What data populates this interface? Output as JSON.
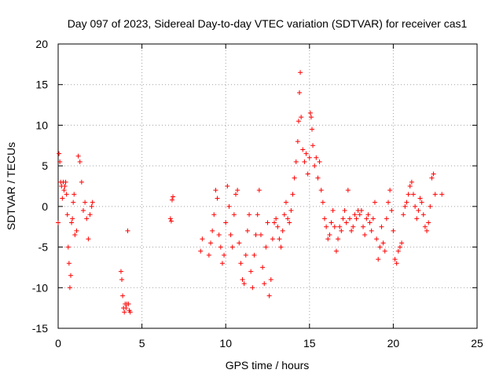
{
  "chart_data": {
    "type": "scatter",
    "title": "Day 097 of 2023, Sidereal Day-to-day VTEC variation (SDTVAR) for receiver cas1",
    "xlabel": "GPS time / hours",
    "ylabel": "SDTVAR / TECUs",
    "xlim": [
      0,
      25
    ],
    "ylim": [
      -15,
      20
    ],
    "xticks": [
      0,
      5,
      10,
      15,
      20,
      25
    ],
    "yticks": [
      -15,
      -10,
      -5,
      0,
      5,
      10,
      15,
      20
    ],
    "xtick_labels": [
      "0",
      "5",
      "10",
      "15",
      "20",
      "25"
    ],
    "ytick_labels": [
      "-15",
      "-10",
      "-5",
      "0",
      "5",
      "10",
      "15",
      "20"
    ],
    "grid": true,
    "marker": "+",
    "color": "#ff0000",
    "series": [
      {
        "name": "SDTVAR",
        "x": [
          0.0,
          0.05,
          0.1,
          0.15,
          0.2,
          0.25,
          0.3,
          0.35,
          0.4,
          0.45,
          0.5,
          0.55,
          0.6,
          0.65,
          0.7,
          0.75,
          0.8,
          0.85,
          0.9,
          0.95,
          1.0,
          1.1,
          1.2,
          1.3,
          1.4,
          1.5,
          1.6,
          1.7,
          1.8,
          1.9,
          2.0,
          2.05,
          3.75,
          3.8,
          3.85,
          3.9,
          3.95,
          4.0,
          4.05,
          4.1,
          4.15,
          4.2,
          4.25,
          4.3,
          6.7,
          6.75,
          6.8,
          6.85,
          8.5,
          8.6,
          9.0,
          9.1,
          9.2,
          9.3,
          9.4,
          9.5,
          9.6,
          9.7,
          9.8,
          9.9,
          10.0,
          10.1,
          10.2,
          10.3,
          10.4,
          10.5,
          10.6,
          10.7,
          10.8,
          10.9,
          11.0,
          11.1,
          11.2,
          11.3,
          11.4,
          11.5,
          11.6,
          11.7,
          11.8,
          11.9,
          12.0,
          12.1,
          12.2,
          12.3,
          12.4,
          12.5,
          12.6,
          12.7,
          12.8,
          12.9,
          13.0,
          13.1,
          13.2,
          13.3,
          13.4,
          13.5,
          13.6,
          13.7,
          13.8,
          13.9,
          14.0,
          14.1,
          14.2,
          14.3,
          14.35,
          14.4,
          14.45,
          14.5,
          14.6,
          14.7,
          14.8,
          14.9,
          15.0,
          15.05,
          15.1,
          15.15,
          15.2,
          15.3,
          15.4,
          15.5,
          15.6,
          15.7,
          15.8,
          15.9,
          16.0,
          16.1,
          16.2,
          16.3,
          16.4,
          16.5,
          16.6,
          16.7,
          16.8,
          16.9,
          17.0,
          17.1,
          17.2,
          17.3,
          17.4,
          17.5,
          17.6,
          17.7,
          17.8,
          17.9,
          18.0,
          18.1,
          18.2,
          18.3,
          18.4,
          18.5,
          18.6,
          18.7,
          18.8,
          18.9,
          19.0,
          19.1,
          19.2,
          19.3,
          19.4,
          19.5,
          19.6,
          19.7,
          19.8,
          19.9,
          20.0,
          20.1,
          20.2,
          20.3,
          20.4,
          20.5,
          20.6,
          20.7,
          20.8,
          20.9,
          21.0,
          21.1,
          21.2,
          21.3,
          21.4,
          21.5,
          21.6,
          21.7,
          21.8,
          21.9,
          22.0,
          22.1,
          22.2,
          22.3,
          22.4,
          22.5,
          22.9
        ],
        "y": [
          -2.0,
          6.5,
          5.5,
          3.0,
          2.5,
          1.0,
          3.0,
          2.0,
          2.5,
          3.0,
          1.5,
          -1.0,
          -5.0,
          -7.0,
          -10.0,
          -8.5,
          -2.0,
          -1.5,
          0.5,
          1.5,
          -3.5,
          -3.0,
          6.2,
          5.5,
          3.0,
          -0.5,
          0.5,
          -1.5,
          -4.0,
          -1.0,
          0.0,
          0.5,
          -8.0,
          -9.0,
          -11.0,
          -12.5,
          -13.0,
          -12.0,
          -12.5,
          -12.0,
          -3.0,
          -12.0,
          -12.8,
          -13.0,
          -1.5,
          -1.8,
          0.8,
          1.2,
          -5.5,
          -4.0,
          -6.0,
          -4.5,
          -3.0,
          -1.0,
          2.0,
          1.0,
          -3.5,
          -5.0,
          -7.0,
          -6.0,
          -2.0,
          2.5,
          0.0,
          -3.5,
          -5.0,
          -1.0,
          1.5,
          2.0,
          -4.5,
          -7.0,
          -9.0,
          -9.5,
          -6.0,
          -3.0,
          -1.0,
          -8.0,
          -10.0,
          -6.0,
          -3.5,
          -1.0,
          2.0,
          -3.5,
          -7.5,
          -9.5,
          -5.0,
          -2.0,
          -11.0,
          -9.0,
          -4.0,
          -2.0,
          -1.5,
          -2.5,
          -4.0,
          -5.0,
          -3.0,
          -1.0,
          0.5,
          -1.5,
          -2.0,
          -0.5,
          1.5,
          3.5,
          5.5,
          8.0,
          10.5,
          14.0,
          16.5,
          11.0,
          7.0,
          5.5,
          6.5,
          4.0,
          6.0,
          11.5,
          11.0,
          9.5,
          7.5,
          5.0,
          6.0,
          3.5,
          5.5,
          2.0,
          0.5,
          -1.5,
          -2.5,
          -4.0,
          -3.5,
          -2.0,
          -0.5,
          -2.5,
          -5.5,
          -4.0,
          -2.5,
          -3.0,
          -1.5,
          -0.5,
          -2.0,
          2.0,
          -1.5,
          -3.0,
          -2.5,
          -1.0,
          -1.5,
          -0.5,
          -1.0,
          -0.5,
          -2.5,
          -3.5,
          -1.5,
          -1.0,
          -2.0,
          -3.0,
          -1.5,
          0.5,
          -4.0,
          -6.5,
          -5.0,
          -2.5,
          -4.5,
          -5.5,
          -1.5,
          0.5,
          2.0,
          -0.5,
          -3.0,
          -6.5,
          -7.0,
          -5.5,
          -5.0,
          -4.5,
          -1.0,
          0.0,
          0.5,
          1.5,
          2.5,
          3.0,
          1.5,
          0.0,
          -1.5,
          -0.5,
          1.0,
          0.5,
          -1.0,
          -2.5,
          -3.0,
          -2.0,
          0.0,
          3.5,
          4.0,
          1.5,
          1.5
        ]
      }
    ]
  }
}
